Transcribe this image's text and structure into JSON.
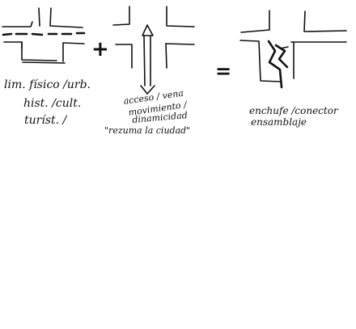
{
  "panels": [
    {
      "id": "limite",
      "lines": [
        "lim. físico /urb.",
        "hist. /cult.",
        "turíst. /"
      ]
    },
    {
      "id": "acceso",
      "lines": [
        "acceso / vena",
        "movimiento /",
        "dinamicidad",
        "\"rezuma la ciudad\""
      ]
    },
    {
      "id": "enchufe",
      "lines": [
        "enchufe /conector",
        "ensamblaje"
      ]
    }
  ],
  "operators": {
    "plus": "+",
    "equals": "="
  },
  "colors": {
    "ink": "#111111",
    "paper": "#ffffff"
  }
}
